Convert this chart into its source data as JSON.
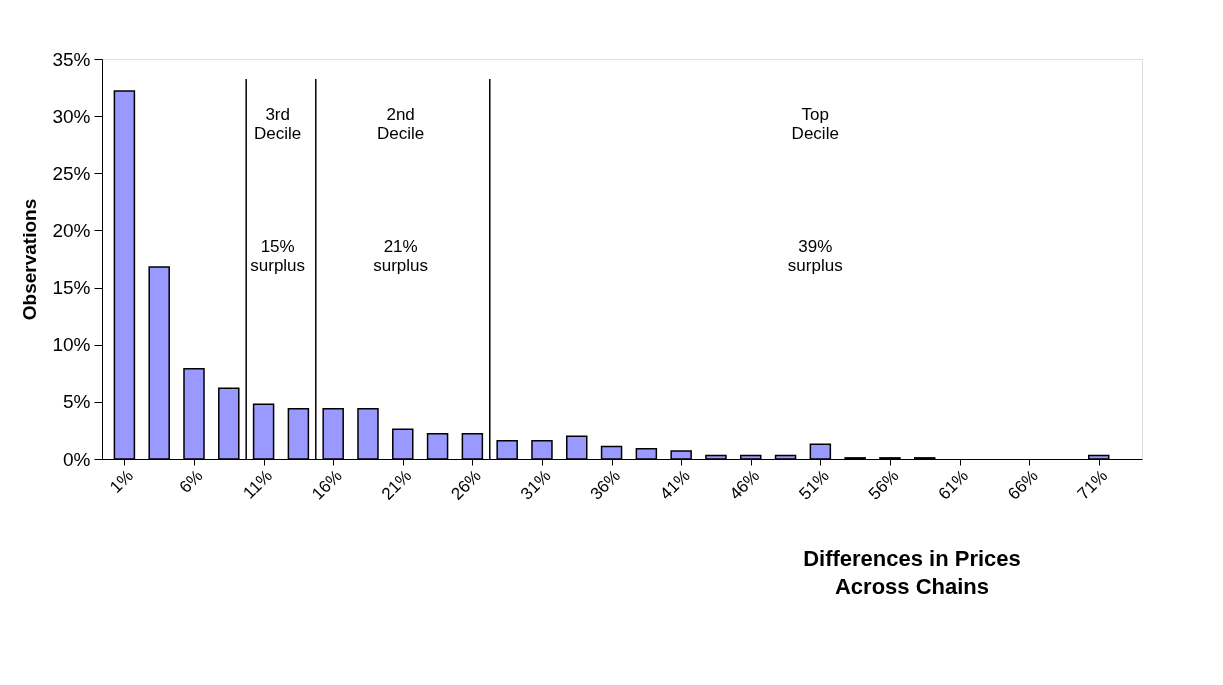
{
  "chart_data": {
    "type": "bar",
    "xlabel": "Differences in Prices\nAcross Chains",
    "ylabel": "Observations",
    "x": [
      1,
      3.5,
      6,
      8.5,
      11,
      13.5,
      16,
      18.5,
      21,
      23.5,
      26,
      28.5,
      31,
      33.5,
      36,
      38.5,
      41,
      43.5,
      46,
      48.5,
      51,
      53.5,
      56,
      58.5,
      61,
      63.5,
      66,
      68.5,
      71
    ],
    "values": [
      32.2,
      16.8,
      7.9,
      6.2,
      4.8,
      4.4,
      4.4,
      4.4,
      2.6,
      2.2,
      2.2,
      1.6,
      1.6,
      2.0,
      1.1,
      0.9,
      0.7,
      0.3,
      0.3,
      0.3,
      1.3,
      0.1,
      0.1,
      0.1,
      null,
      null,
      null,
      null,
      0.3
    ],
    "color": "#9999ff",
    "xlim": [
      -0.25,
      73.75
    ],
    "xticks": [
      {
        "value": 1,
        "label": "1%"
      },
      {
        "value": 6,
        "label": "6%"
      },
      {
        "value": 11,
        "label": "11%"
      },
      {
        "value": 16,
        "label": "16%"
      },
      {
        "value": 21,
        "label": "21%"
      },
      {
        "value": 26,
        "label": "26%"
      },
      {
        "value": 31,
        "label": "31%"
      },
      {
        "value": 36,
        "label": "36%"
      },
      {
        "value": 41,
        "label": "41%"
      },
      {
        "value": 46,
        "label": "46%"
      },
      {
        "value": 51,
        "label": "51%"
      },
      {
        "value": 56,
        "label": "56%"
      },
      {
        "value": 61,
        "label": "61%"
      },
      {
        "value": 66,
        "label": "66%"
      },
      {
        "value": 71,
        "label": "71%"
      }
    ],
    "ylim": [
      0,
      35
    ],
    "yticks": [
      {
        "value": 0,
        "label": "0%"
      },
      {
        "value": 5,
        "label": "5%"
      },
      {
        "value": 10,
        "label": "10%"
      },
      {
        "value": 15,
        "label": "15%"
      },
      {
        "value": 20,
        "label": "20%"
      },
      {
        "value": 25,
        "label": "25%"
      },
      {
        "value": 30,
        "label": "30%"
      },
      {
        "value": 35,
        "label": "35%"
      }
    ],
    "ref_lines": [
      {
        "axis": "x",
        "value": 9.75,
        "color": "#000000"
      },
      {
        "axis": "x",
        "value": 14.75,
        "color": "#000000"
      },
      {
        "axis": "x",
        "value": 27.25,
        "color": "#000000"
      }
    ],
    "annotations": [
      "3rd\nDecile",
      "2nd\nDecile",
      "Top\nDecile",
      "15%\nsurplus",
      "21%\nsurplus",
      "39%\nsurplus"
    ],
    "grid": false
  }
}
